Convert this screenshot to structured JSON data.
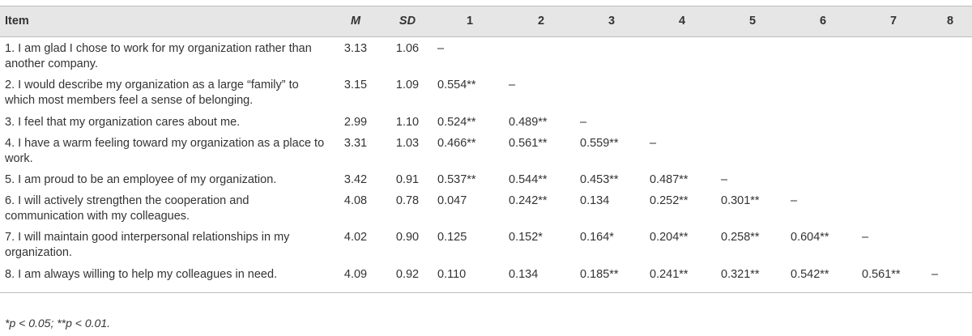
{
  "table": {
    "headers": [
      "Item",
      "M",
      "SD",
      "1",
      "2",
      "3",
      "4",
      "5",
      "6",
      "7",
      "8"
    ],
    "rows": [
      [
        "1. I am glad I chose to work for my organization rather than another company.",
        "3.13",
        "1.06",
        "–",
        "",
        "",
        "",
        "",
        "",
        "",
        ""
      ],
      [
        "2. I would describe my organization as a large “family” to which most members feel a sense of belonging.",
        "3.15",
        "1.09",
        "0.554**",
        "–",
        "",
        "",
        "",
        "",
        "",
        ""
      ],
      [
        "3. I feel that my organization cares about me.",
        "2.99",
        "1.10",
        "0.524**",
        "0.489**",
        "–",
        "",
        "",
        "",
        "",
        ""
      ],
      [
        "4. I have a warm feeling toward my organization as a place to work.",
        "3.31",
        "1.03",
        "0.466**",
        "0.561**",
        "0.559**",
        "–",
        "",
        "",
        "",
        ""
      ],
      [
        "5. I am proud to be an employee of my organization.",
        "3.42",
        "0.91",
        "0.537**",
        "0.544**",
        "0.453**",
        "0.487**",
        "–",
        "",
        "",
        ""
      ],
      [
        "6. I will actively strengthen the cooperation and communication with my colleagues.",
        "4.08",
        "0.78",
        "0.047",
        "0.242**",
        "0.134",
        "0.252**",
        "0.301**",
        "–",
        "",
        ""
      ],
      [
        "7. I will maintain good interpersonal relationships in my organization.",
        "4.02",
        "0.90",
        "0.125",
        "0.152*",
        "0.164*",
        "0.204**",
        "0.258**",
        "0.604**",
        "–",
        ""
      ],
      [
        "8. I am always willing to help my colleagues in need.",
        "4.09",
        "0.92",
        "0.110",
        "0.134",
        "0.185**",
        "0.241**",
        "0.321**",
        "0.542**",
        "0.561**",
        "–"
      ]
    ]
  },
  "footnote": "*p < 0.05; **p < 0.01."
}
